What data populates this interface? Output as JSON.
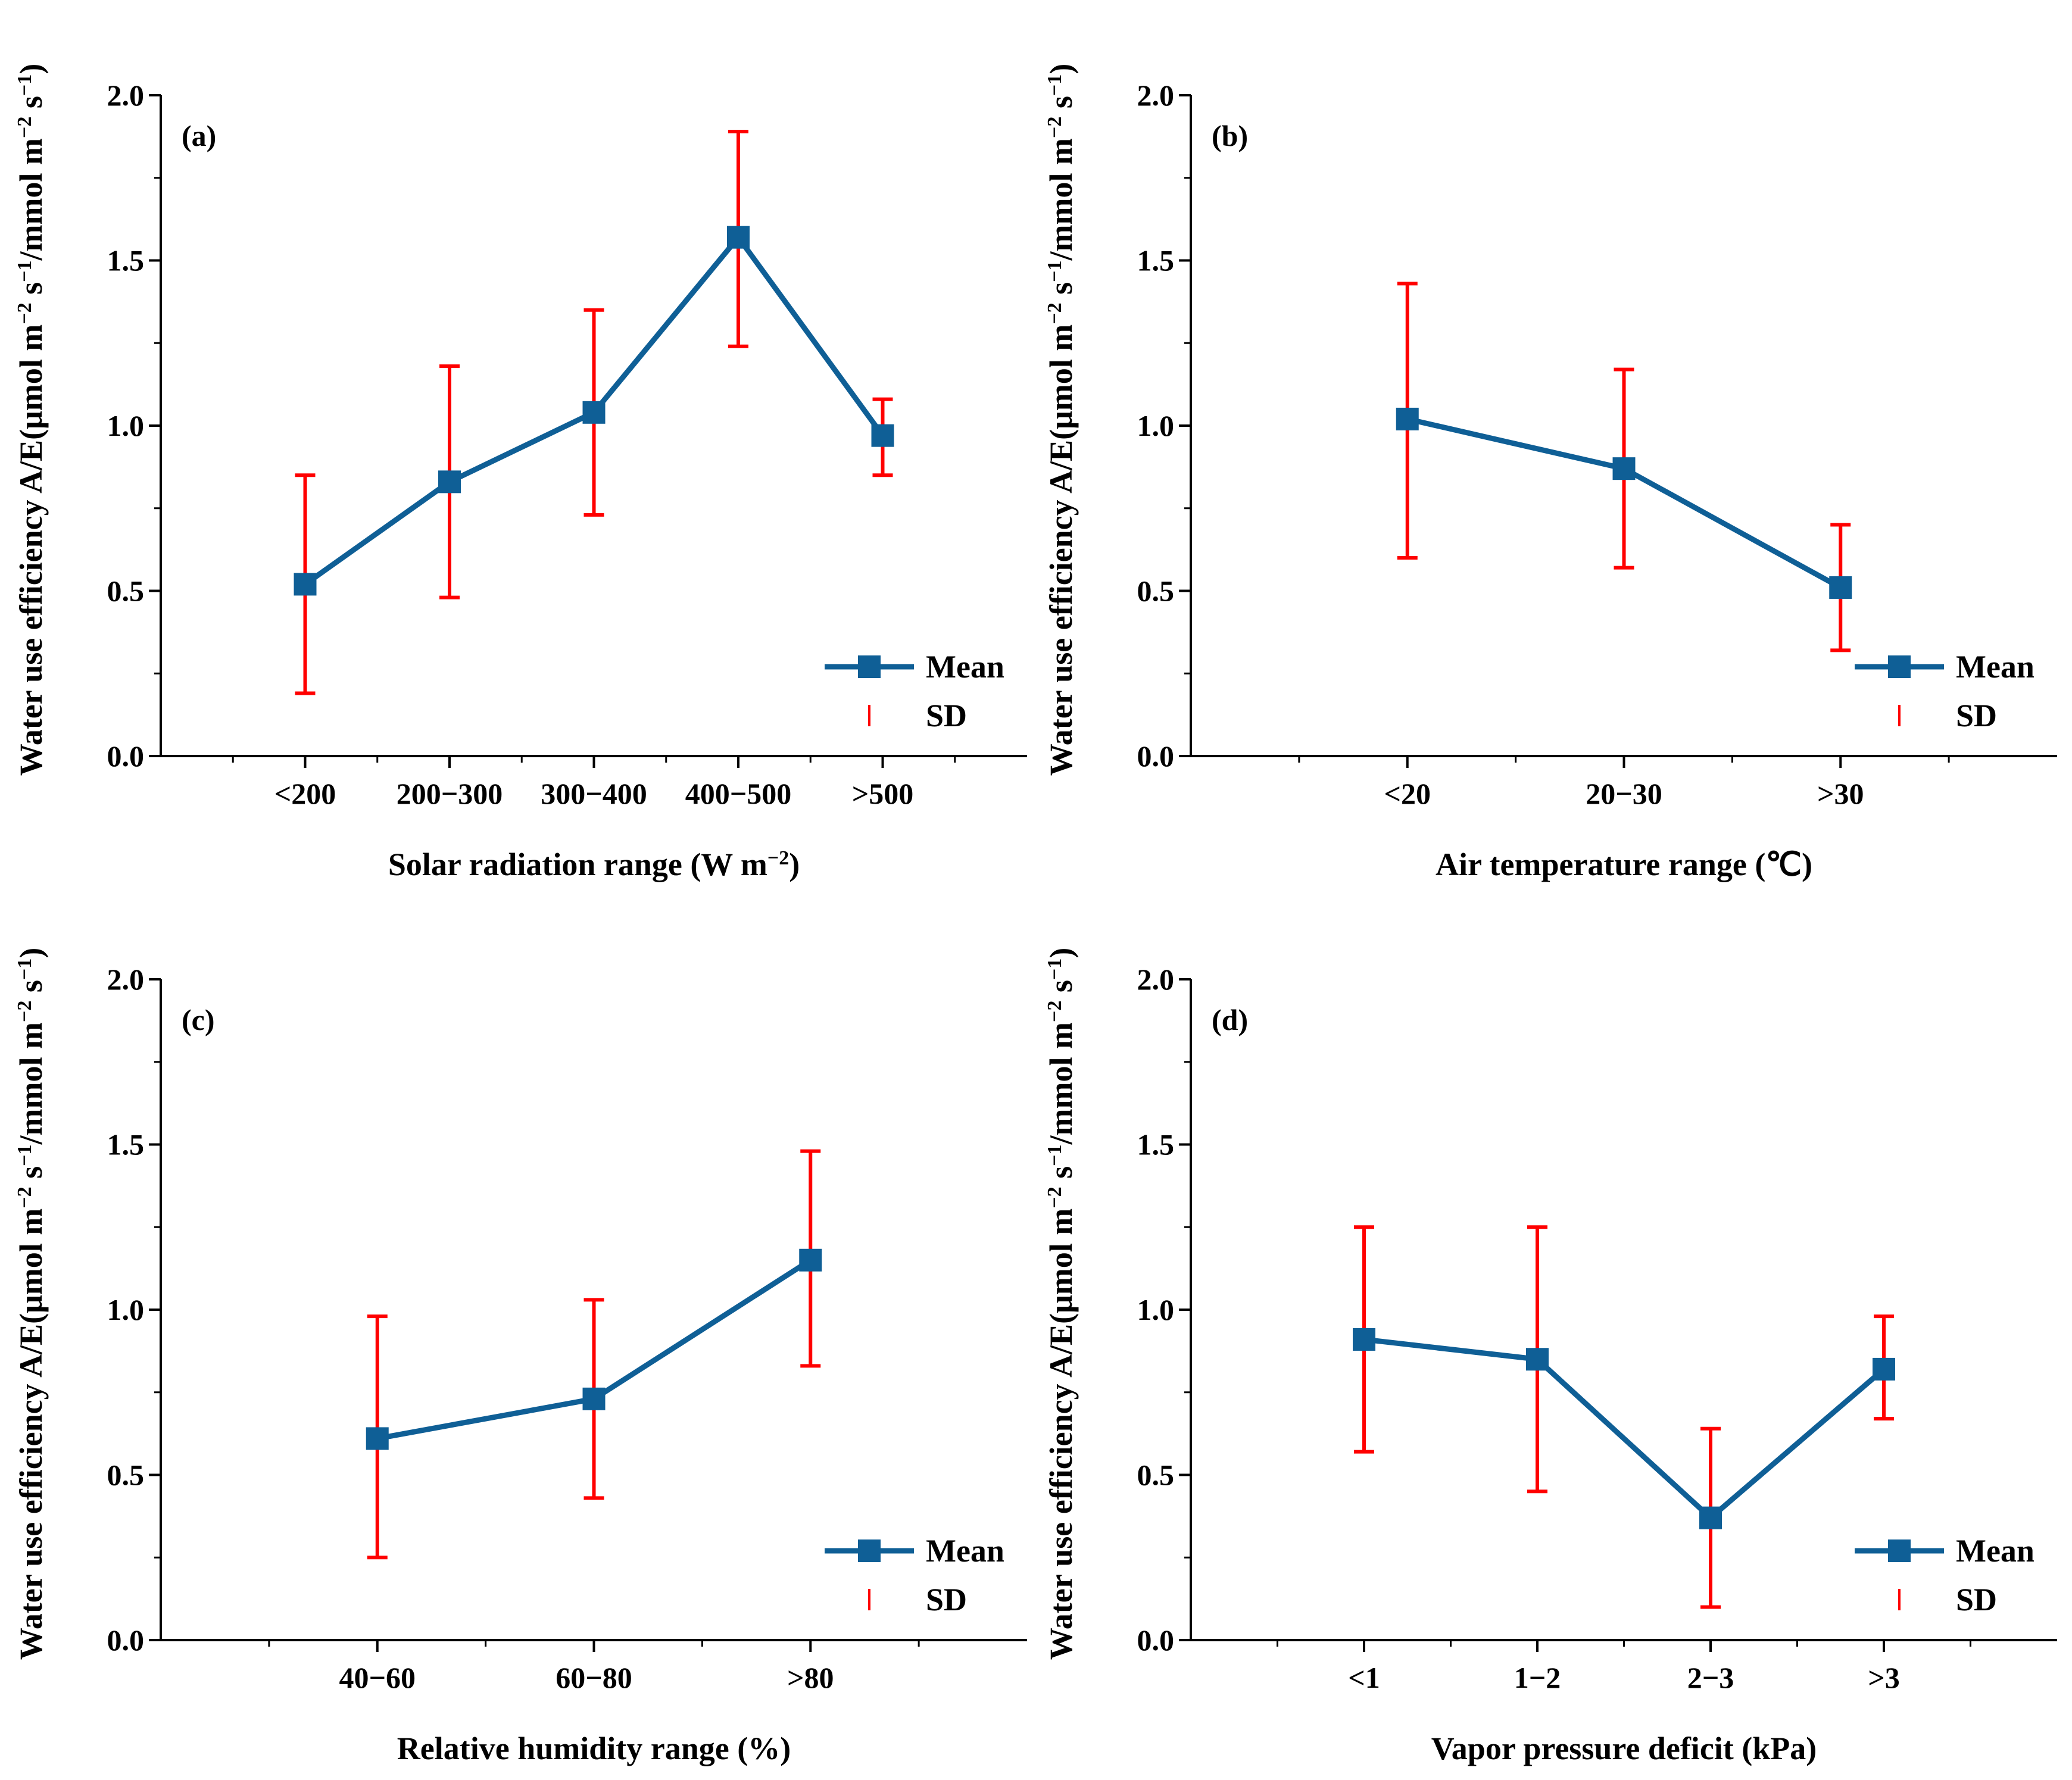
{
  "figure": {
    "ylabel_main": "Water use efficiency A/E(μmol m",
    "ylabel_sup1": "−2",
    "ylabel_s": " s",
    "ylabel_sup2": "−1",
    "ylabel_mid": "/mmol m",
    "ylabel_sup3": "−2",
    "ylabel_s2": " s",
    "ylabel_sup4": "−1",
    "ylabel_close": ")",
    "legend_mean": "Mean",
    "legend_sd": "SD",
    "colors": {
      "line": "#0f5f96",
      "error": "#ff0000",
      "axis": "#000000"
    }
  },
  "chart_data": [
    {
      "type": "line",
      "panel_label": "(a)",
      "xlabel": "Solar radiation range (W m",
      "xlabel_sup": "−2",
      "xlabel_close": ")",
      "categories": [
        "<200",
        "200−300",
        "300−400",
        "400−500",
        ">500"
      ],
      "series": [
        {
          "name": "Mean",
          "values": [
            0.52,
            0.83,
            1.04,
            1.57,
            0.97
          ]
        }
      ],
      "sd_low": [
        0.19,
        0.48,
        0.73,
        1.24,
        0.85
      ],
      "sd_high": [
        0.85,
        1.18,
        1.35,
        1.89,
        1.08
      ],
      "ylim": [
        0,
        2.0
      ],
      "yticks": [
        "0.0",
        "0.5",
        "1.0",
        "1.5",
        "2.0"
      ],
      "legend": [
        "Mean",
        "SD"
      ]
    },
    {
      "type": "line",
      "panel_label": "(b)",
      "xlabel": "Air temperature range (℃)",
      "xlabel_sup": "",
      "xlabel_close": "",
      "categories": [
        "<20",
        "20−30",
        ">30"
      ],
      "series": [
        {
          "name": "Mean",
          "values": [
            1.02,
            0.87,
            0.51
          ]
        }
      ],
      "sd_low": [
        0.6,
        0.57,
        0.32
      ],
      "sd_high": [
        1.43,
        1.17,
        0.7
      ],
      "ylim": [
        0,
        2.0
      ],
      "yticks": [
        "0.0",
        "0.5",
        "1.0",
        "1.5",
        "2.0"
      ],
      "legend": [
        "Mean",
        "SD"
      ]
    },
    {
      "type": "line",
      "panel_label": "(c)",
      "xlabel": "Relative humidity range (%)",
      "xlabel_sup": "",
      "xlabel_close": "",
      "categories": [
        "40−60",
        "60−80",
        ">80"
      ],
      "series": [
        {
          "name": "Mean",
          "values": [
            0.61,
            0.73,
            1.15
          ]
        }
      ],
      "sd_low": [
        0.25,
        0.43,
        0.83
      ],
      "sd_high": [
        0.98,
        1.03,
        1.48
      ],
      "ylim": [
        0,
        2.0
      ],
      "yticks": [
        "0.0",
        "0.5",
        "1.0",
        "1.5",
        "2.0"
      ],
      "legend": [
        "Mean",
        "SD"
      ]
    },
    {
      "type": "line",
      "panel_label": "(d)",
      "xlabel": "Vapor pressure deficit (kPa)",
      "xlabel_sup": "",
      "xlabel_close": "",
      "categories": [
        "<1",
        "1−2",
        "2−3",
        ">3"
      ],
      "series": [
        {
          "name": "Mean",
          "values": [
            0.91,
            0.85,
            0.37,
            0.82
          ]
        }
      ],
      "sd_low": [
        0.57,
        0.45,
        0.1,
        0.67
      ],
      "sd_high": [
        1.25,
        1.25,
        0.64,
        0.98
      ],
      "ylim": [
        0,
        2.0
      ],
      "yticks": [
        "0.0",
        "0.5",
        "1.0",
        "1.5",
        "2.0"
      ],
      "legend": [
        "Mean",
        "SD"
      ]
    }
  ]
}
